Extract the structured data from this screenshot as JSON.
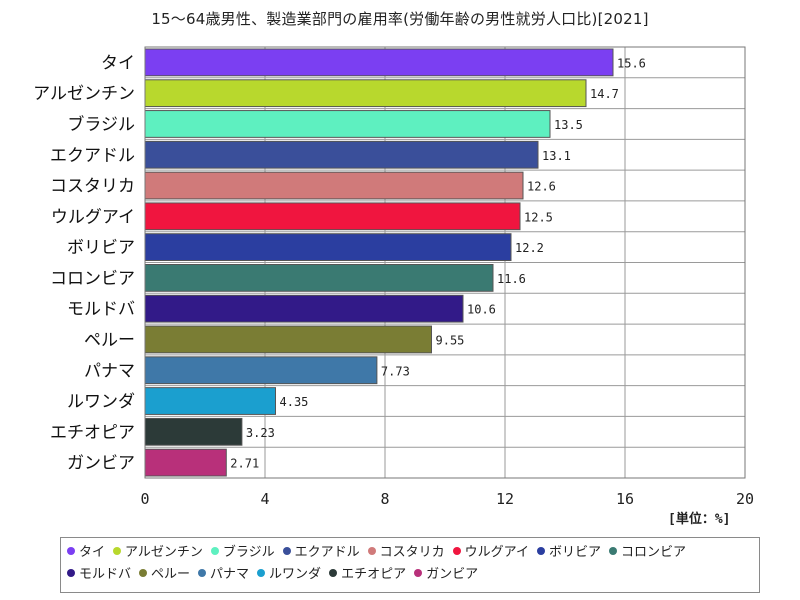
{
  "chart_data": {
    "type": "bar",
    "orientation": "horizontal",
    "title": "15～64歳男性、製造業部門の雇用率(労働年齢の男性就労人口比)[2021]",
    "unit": "[単位：%]",
    "categories": [
      "タイ",
      "アルゼンチン",
      "ブラジル",
      "エクアドル",
      "コスタリカ",
      "ウルグアイ",
      "ボリビア",
      "コロンビア",
      "モルドバ",
      "ペルー",
      "パナマ",
      "ルワンダ",
      "エチオピア",
      "ガンビア"
    ],
    "values": [
      15.6,
      14.7,
      13.5,
      13.1,
      12.6,
      12.5,
      12.2,
      11.6,
      10.6,
      9.55,
      7.73,
      4.35,
      3.23,
      2.71
    ],
    "value_labels": [
      "15.6",
      "14.7",
      "13.5",
      "13.1",
      "12.6",
      "12.5",
      "12.2",
      "11.6",
      "10.6",
      "9.55",
      "7.73",
      "4.35",
      "3.23",
      "2.71"
    ],
    "colors": [
      "#7b3ff2",
      "#b8d82d",
      "#5ef0c0",
      "#3a4f9a",
      "#d07a7a",
      "#f0153f",
      "#2b3ea0",
      "#3a7a72",
      "#321a88",
      "#7a7d34",
      "#3f78a8",
      "#1b9fcf",
      "#2c3a38",
      "#b8307a"
    ],
    "xlim": [
      0,
      20
    ],
    "xticks": [
      "0",
      "4",
      "8",
      "12",
      "16",
      "20"
    ],
    "xtick_values": [
      0,
      4,
      8,
      12,
      16,
      20
    ],
    "grid": true,
    "legend_position": "bottom"
  }
}
